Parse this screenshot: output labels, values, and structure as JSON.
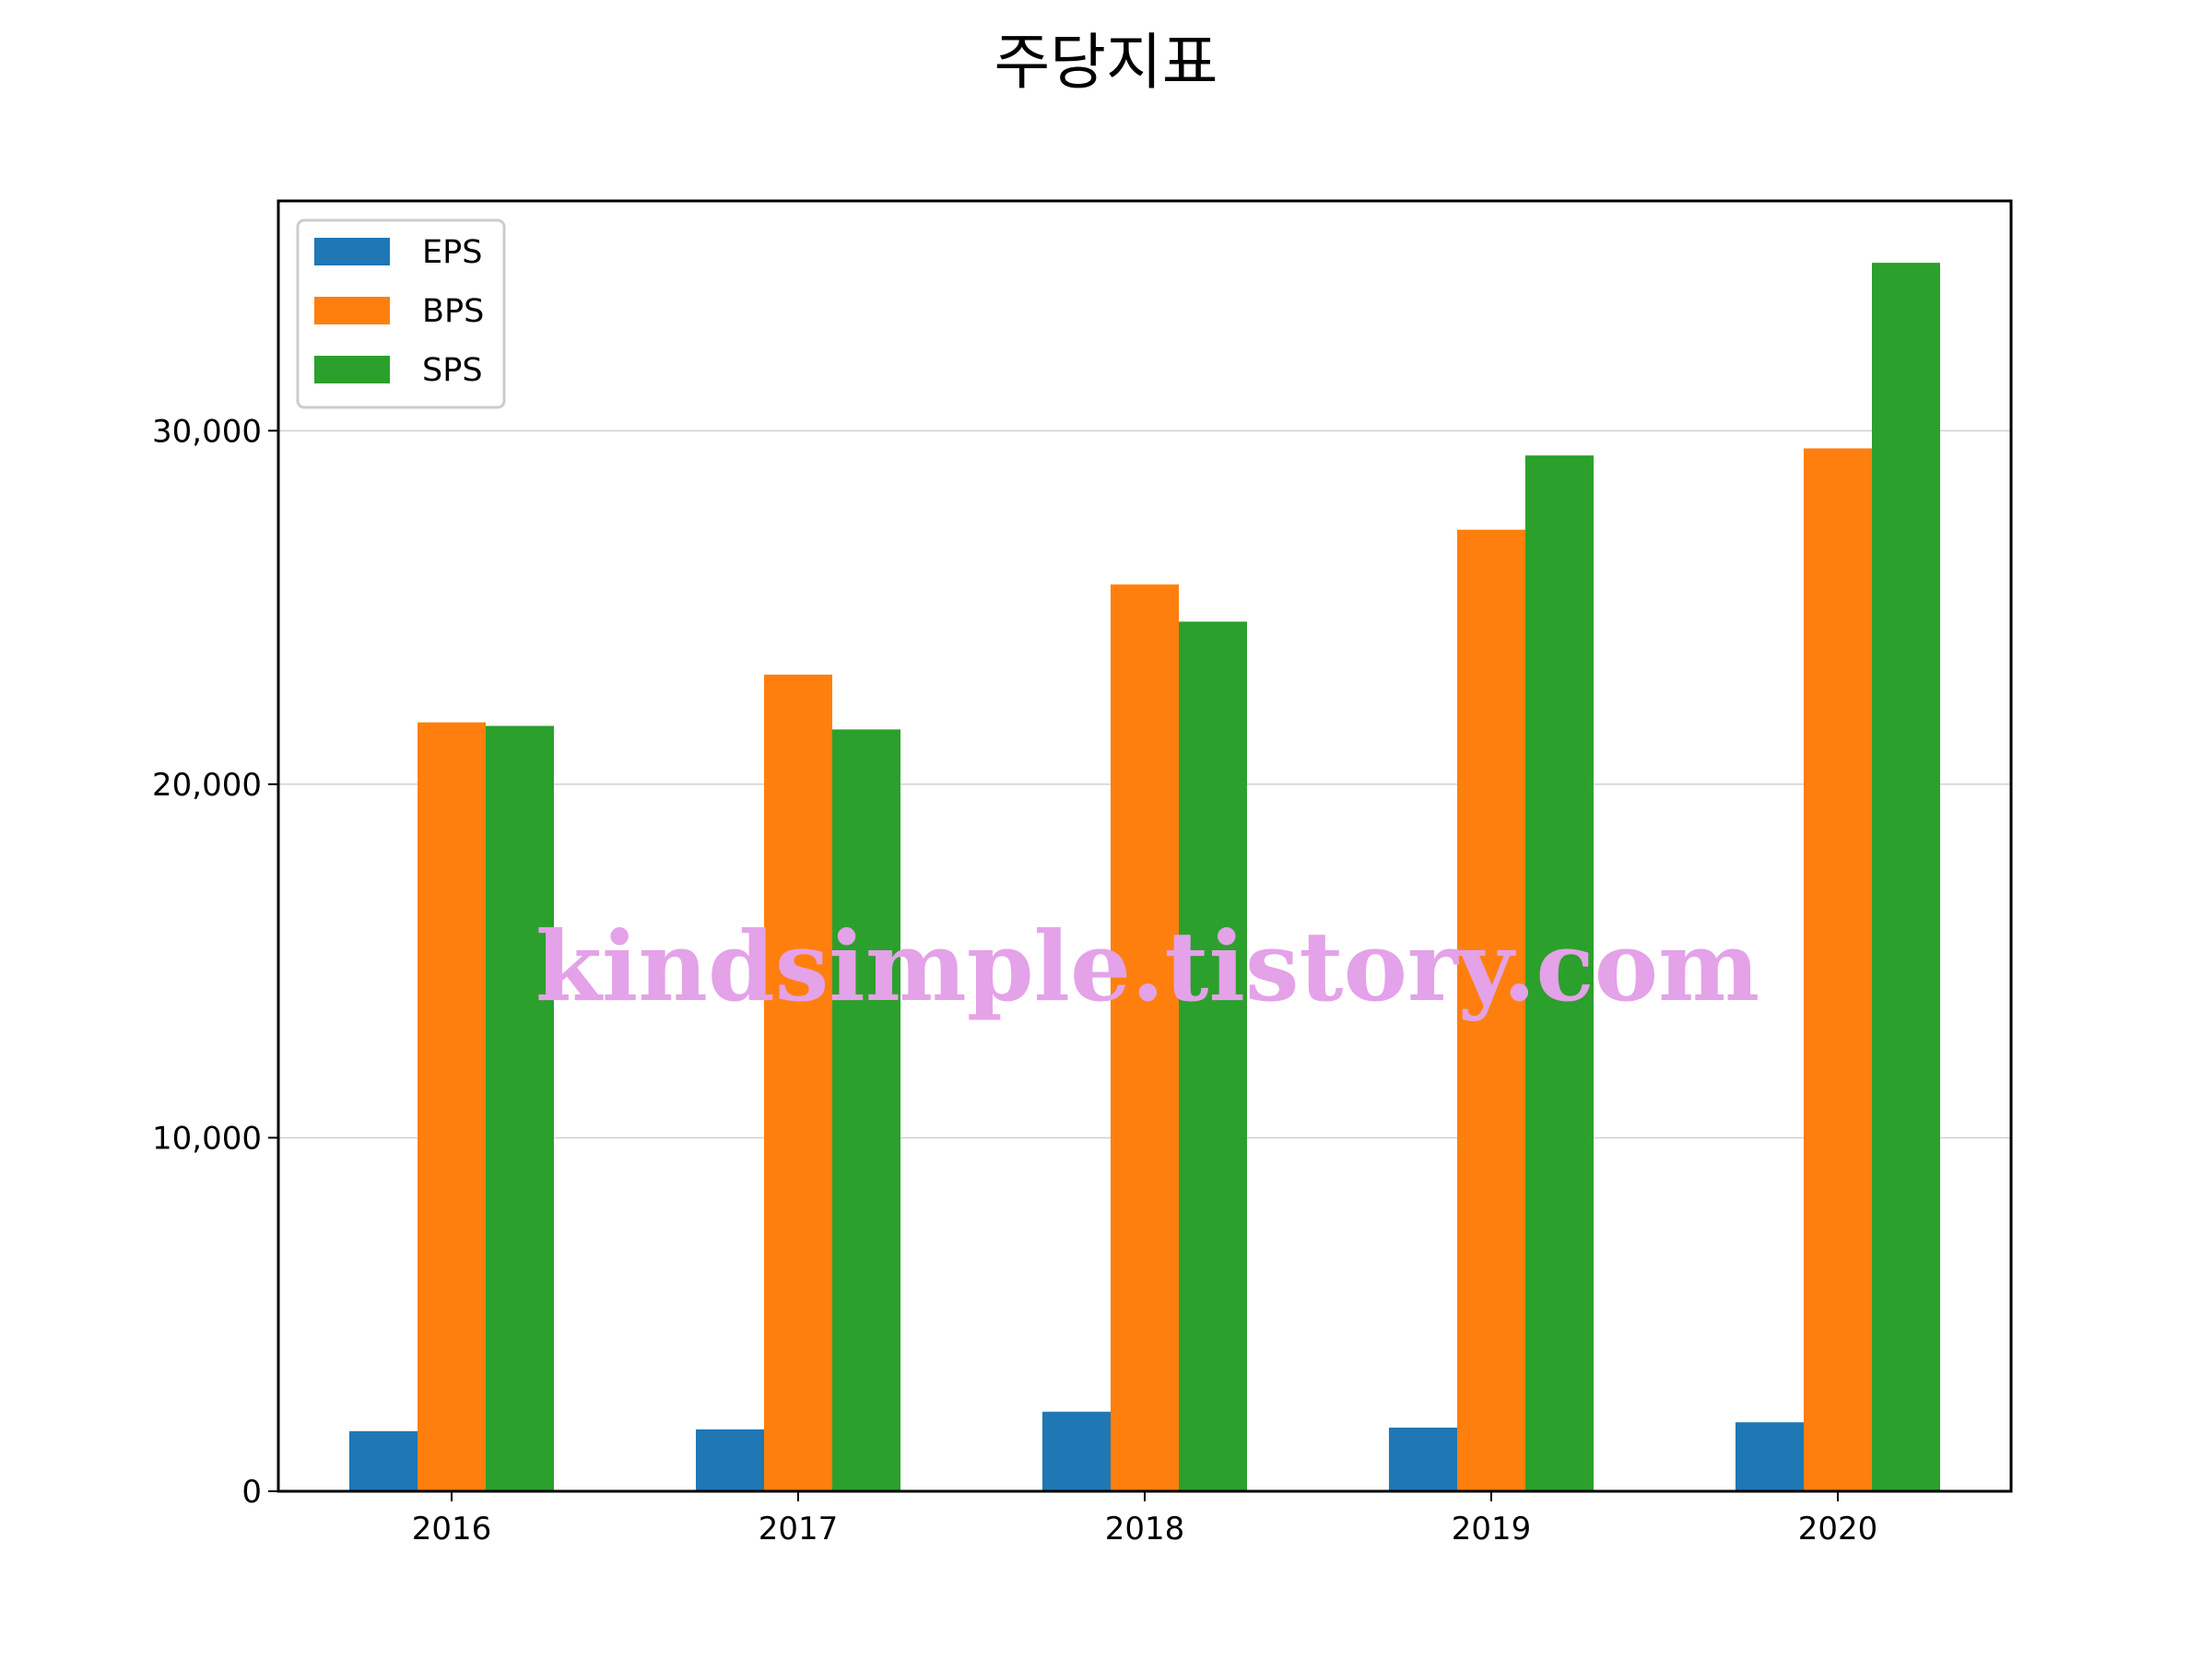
{
  "chart_data": {
    "type": "bar",
    "title": "주당지표",
    "xlabel": "",
    "ylabel": "",
    "categories": [
      "2016",
      "2017",
      "2018",
      "2019",
      "2020"
    ],
    "series": [
      {
        "name": "EPS",
        "color": "#1f77b4",
        "values": [
          1700,
          1750,
          2250,
          1800,
          1950
        ]
      },
      {
        "name": "BPS",
        "color": "#ff7f0e",
        "values": [
          21750,
          23100,
          25650,
          27200,
          29500
        ]
      },
      {
        "name": "SPS",
        "color": "#2ca02c",
        "values": [
          21650,
          21550,
          24600,
          29300,
          34750
        ]
      }
    ],
    "ylim": [
      0,
      36500
    ],
    "yticks": [
      0,
      10000,
      20000,
      30000
    ],
    "ytick_labels": [
      "0",
      "10,000",
      "20,000",
      "30,000"
    ],
    "grid": "horizontal",
    "legend_position": "top-left"
  },
  "watermark": "kindsimple.tistory.com"
}
